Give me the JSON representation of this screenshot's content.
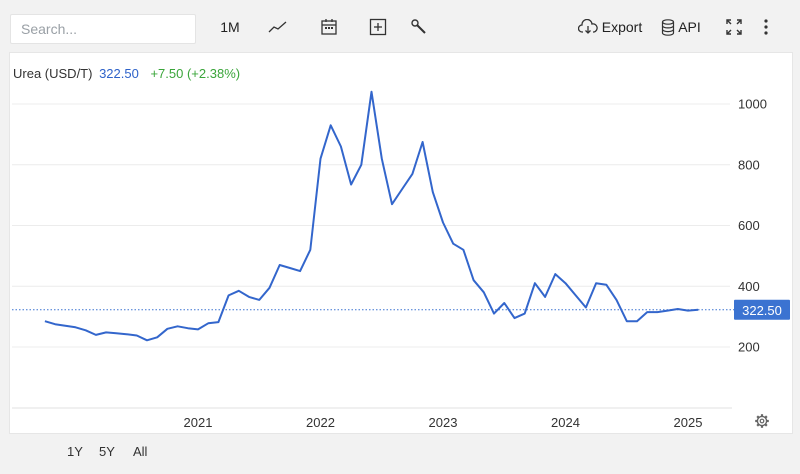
{
  "toolbar": {
    "search_placeholder": "Search...",
    "interval_label": "1M",
    "export_label": "Export",
    "api_label": "API",
    "icons": [
      "line-chart-icon",
      "calendar-icon",
      "plus-box-icon",
      "wrench-icon",
      "cloud-download-icon",
      "database-icon",
      "fullscreen-icon",
      "more-vertical-icon"
    ]
  },
  "legend": {
    "name": "Urea (USD/T)",
    "price": "322.50",
    "change": "+7.50 (+2.38%)"
  },
  "price_tag": "322.50",
  "ranges": [
    "1Y",
    "5Y",
    "All"
  ],
  "colors": {
    "line": "#3366cc",
    "change_up": "#3aa53a",
    "price_tag_bg": "#3b73d1"
  },
  "chart_data": {
    "type": "line",
    "title": "",
    "xlabel": "",
    "ylabel": "",
    "x_ticks": [
      "2021",
      "2022",
      "2023",
      "2024",
      "2025"
    ],
    "y_ticks": [
      "200",
      "400",
      "600",
      "800",
      "1000"
    ],
    "ylim": [
      0,
      1100
    ],
    "current_value": 322.5,
    "series": [
      {
        "values": [
          [
            "2019-10",
            285
          ],
          [
            "2019-11",
            275
          ],
          [
            "2019-12",
            270
          ],
          [
            "2020-01",
            265
          ],
          [
            "2020-02",
            255
          ],
          [
            "2020-03",
            240
          ],
          [
            "2020-04",
            248
          ],
          [
            "2020-05",
            245
          ],
          [
            "2020-06",
            242
          ],
          [
            "2020-07",
            238
          ],
          [
            "2020-08",
            222
          ],
          [
            "2020-09",
            232
          ],
          [
            "2020-10",
            260
          ],
          [
            "2020-11",
            268
          ],
          [
            "2020-12",
            262
          ],
          [
            "2021-01",
            258
          ],
          [
            "2021-02",
            278
          ],
          [
            "2021-03",
            282
          ],
          [
            "2021-04",
            370
          ],
          [
            "2021-05",
            385
          ],
          [
            "2021-06",
            365
          ],
          [
            "2021-07",
            355
          ],
          [
            "2021-08",
            395
          ],
          [
            "2021-09",
            470
          ],
          [
            "2021-10",
            460
          ],
          [
            "2021-11",
            450
          ],
          [
            "2021-12",
            520
          ],
          [
            "2022-01",
            820
          ],
          [
            "2022-02",
            930
          ],
          [
            "2022-03",
            860
          ],
          [
            "2022-04",
            735
          ],
          [
            "2022-05",
            800
          ],
          [
            "2022-06",
            1040
          ],
          [
            "2022-07",
            820
          ],
          [
            "2022-08",
            670
          ],
          [
            "2022-09",
            720
          ],
          [
            "2022-10",
            770
          ],
          [
            "2022-11",
            875
          ],
          [
            "2022-12",
            710
          ],
          [
            "2023-01",
            610
          ],
          [
            "2023-02",
            540
          ],
          [
            "2023-03",
            520
          ],
          [
            "2023-04",
            420
          ],
          [
            "2023-05",
            380
          ],
          [
            "2023-06",
            310
          ],
          [
            "2023-07",
            345
          ],
          [
            "2023-08",
            295
          ],
          [
            "2023-09",
            310
          ],
          [
            "2023-10",
            410
          ],
          [
            "2023-11",
            365
          ],
          [
            "2023-12",
            440
          ],
          [
            "2024-01",
            410
          ],
          [
            "2024-02",
            370
          ],
          [
            "2024-03",
            330
          ],
          [
            "2024-04",
            410
          ],
          [
            "2024-05",
            405
          ],
          [
            "2024-06",
            355
          ],
          [
            "2024-07",
            285
          ],
          [
            "2024-08",
            285
          ],
          [
            "2024-09",
            315
          ],
          [
            "2024-10",
            315
          ],
          [
            "2024-11",
            320
          ],
          [
            "2024-12",
            325
          ],
          [
            "2025-01",
            320
          ],
          [
            "2025-02",
            322.5
          ]
        ]
      }
    ],
    "grid": true,
    "y_axis_position": "right"
  }
}
